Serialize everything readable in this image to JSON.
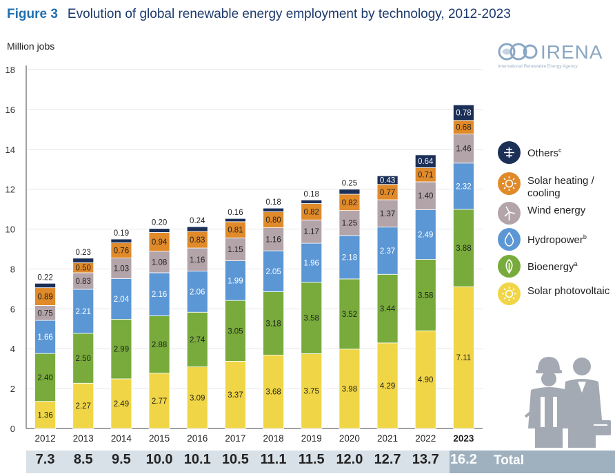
{
  "header": {
    "figure_label": "Figure 3",
    "title": "Evolution of global renewable energy employment by technology, 2012-2023"
  },
  "logo": {
    "name": "IRENA",
    "subtitle": "International Renewable Energy Agency"
  },
  "chart_data": {
    "type": "bar",
    "stacked": true,
    "ylabel": "Million jobs",
    "ylim": [
      0,
      18
    ],
    "yticks": [
      0,
      2,
      4,
      6,
      8,
      10,
      12,
      14,
      16,
      18
    ],
    "grid": true,
    "legend_position": "right",
    "categories": [
      "2012",
      "2013",
      "2014",
      "2015",
      "2016",
      "2017",
      "2018",
      "2019",
      "2020",
      "2021",
      "2022",
      "2023"
    ],
    "highlight_category": "2023",
    "series": [
      {
        "name": "Solar photovoltaic",
        "color": "#f0d646",
        "values": [
          1.36,
          2.27,
          2.49,
          2.77,
          3.09,
          3.37,
          3.68,
          3.75,
          3.98,
          4.29,
          4.9,
          7.11
        ],
        "labels": [
          "1.36",
          "2.27",
          "2.49",
          "2.77",
          "3.09",
          "3.37",
          "3.68",
          "3.75",
          "3.98",
          "4.29",
          "4.90",
          "7.11"
        ]
      },
      {
        "name": "Bioenergy",
        "color": "#78ab3c",
        "values": [
          2.4,
          2.5,
          2.99,
          2.88,
          2.74,
          3.05,
          3.18,
          3.58,
          3.52,
          3.44,
          3.58,
          3.88
        ],
        "labels": [
          "2.40",
          "2.50",
          "2.99",
          "2.88",
          "2.74",
          "3.05",
          "3.18",
          "3.58",
          "3.52",
          "3.44",
          "3.58",
          "3.88"
        ]
      },
      {
        "name": "Hydropower",
        "color": "#5c97d5",
        "values": [
          1.66,
          2.21,
          2.04,
          2.16,
          2.06,
          1.99,
          2.05,
          1.96,
          2.18,
          2.37,
          2.49,
          2.32
        ],
        "labels": [
          "1.66",
          "2.21",
          "2.04",
          "2.16",
          "2.06",
          "1.99",
          "2.05",
          "1.96",
          "2.18",
          "2.37",
          "2.49",
          "2.32"
        ]
      },
      {
        "name": "Wind energy",
        "color": "#b3a4aa",
        "values": [
          0.75,
          0.83,
          1.03,
          1.08,
          1.16,
          1.15,
          1.16,
          1.17,
          1.25,
          1.37,
          1.4,
          1.46
        ],
        "labels": [
          "0.75",
          "0.83",
          "1.03",
          "1.08",
          "1.16",
          "1.15",
          "1.16",
          "1.17",
          "1.25",
          "1.37",
          "1.40",
          "1.46"
        ]
      },
      {
        "name": "Solar heating / cooling",
        "color": "#e08a2a",
        "values": [
          0.89,
          0.5,
          0.76,
          0.94,
          0.83,
          0.81,
          0.8,
          0.82,
          0.82,
          0.77,
          0.71,
          0.68
        ],
        "labels": [
          "0.89",
          "0.50",
          "0.76",
          "0.94",
          "0.83",
          "0.81",
          "0.80",
          "0.82",
          "0.82",
          "0.77",
          "0.71",
          "0.68"
        ]
      },
      {
        "name": "Others",
        "color": "#1b2f57",
        "values": [
          0.22,
          0.23,
          0.19,
          0.2,
          0.24,
          0.16,
          0.18,
          0.18,
          0.25,
          0.43,
          0.64,
          0.78
        ],
        "labels": [
          "0.22",
          "0.23",
          "0.19",
          "0.20",
          "0.24",
          "0.16",
          "0.18",
          "0.18",
          "0.25",
          "0.43",
          "0.64",
          "0.78"
        ]
      }
    ],
    "totals": [
      "7.3",
      "8.5",
      "9.5",
      "10.0",
      "10.1",
      "10.5",
      "11.1",
      "11.5",
      "12.0",
      "12.7",
      "13.7",
      "16.2"
    ],
    "totals_label": "Total"
  },
  "legend": [
    {
      "label": "Others",
      "sup": "c",
      "color": "#1b2f57",
      "icon": "plus-grid-icon"
    },
    {
      "label": "Solar heating / cooling",
      "sup": "",
      "color": "#e08a2a",
      "icon": "sun-icon"
    },
    {
      "label": "Wind energy",
      "sup": "",
      "color": "#b3a4aa",
      "icon": "wind-turbine-icon"
    },
    {
      "label": "Hydropower",
      "sup": "b",
      "color": "#5c97d5",
      "icon": "water-drop-icon"
    },
    {
      "label": "Bioenergy",
      "sup": "a",
      "color": "#78ab3c",
      "icon": "leaf-icon"
    },
    {
      "label": "Solar photovoltaic",
      "sup": "",
      "color": "#f0d646",
      "icon": "sun-icon"
    }
  ]
}
